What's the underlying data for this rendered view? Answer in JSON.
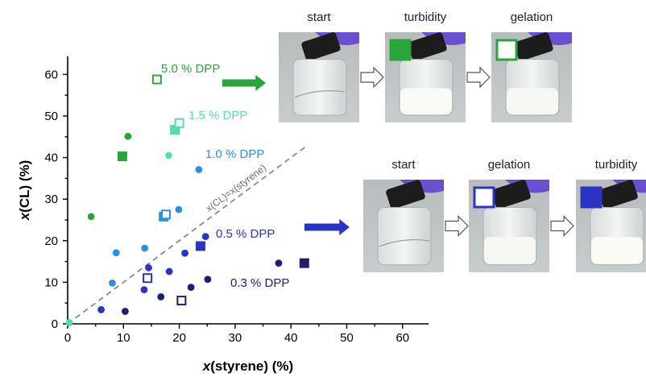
{
  "chart_data": {
    "type": "scatter",
    "xlabel": "x(styrene) (%)",
    "ylabel": "x(CL) (%)",
    "xlim": [
      0,
      65
    ],
    "ylim": [
      0,
      65
    ],
    "x_ticks": [
      0,
      10,
      20,
      30,
      40,
      50,
      60
    ],
    "y_ticks": [
      0,
      10,
      20,
      30,
      40,
      50,
      60
    ],
    "grid": false,
    "diagonal_label": "x(CL)=x(styrene)",
    "series": [
      {
        "name": "5.0 % DPP",
        "color": "#2aa53a",
        "circles": [
          [
            4.2,
            25.8
          ],
          [
            10.8,
            45.1
          ]
        ],
        "filled_squares": [
          [
            9.8,
            40.3
          ]
        ],
        "open_squares": [
          [
            16.0,
            58.8
          ]
        ]
      },
      {
        "name": "1.5 % DPP",
        "color": "#4fe0b0",
        "circles": [
          [
            0.3,
            0.3
          ],
          [
            18.1,
            40.5
          ]
        ],
        "filled_squares": [
          [
            19.2,
            46.7
          ]
        ],
        "open_squares": [
          [
            20.0,
            48.3
          ]
        ]
      },
      {
        "name": "1.0 % DPP",
        "color": "#2b8fe0",
        "circles": [
          [
            8.7,
            17.1
          ],
          [
            8.0,
            9.8
          ],
          [
            13.8,
            18.2
          ],
          [
            19.9,
            27.5
          ],
          [
            23.5,
            37.1
          ]
        ],
        "filled_squares": [
          [
            17.2,
            25.8
          ]
        ],
        "open_squares": [
          [
            17.6,
            26.3
          ]
        ]
      },
      {
        "name": "0.5 % DPP",
        "color": "#2a34c4",
        "circles": [
          [
            6.0,
            3.4
          ],
          [
            13.7,
            8.2
          ],
          [
            14.5,
            13.5
          ],
          [
            18.2,
            12.6
          ],
          [
            21.0,
            17.0
          ],
          [
            24.7,
            21.0
          ]
        ],
        "filled_squares": [
          [
            23.8,
            18.7
          ]
        ],
        "open_squares": [
          [
            14.3,
            11.0
          ]
        ]
      },
      {
        "name": "0.3 % DPP",
        "color": "#1b1f6e",
        "circles": [
          [
            10.3,
            3.0
          ],
          [
            16.7,
            6.5
          ],
          [
            22.1,
            8.8
          ],
          [
            25.1,
            10.7
          ],
          [
            37.8,
            14.6
          ]
        ],
        "filled_squares": [
          [
            42.4,
            14.6
          ]
        ],
        "open_squares": [
          [
            20.4,
            5.6
          ]
        ]
      }
    ]
  },
  "photo_panels": [
    {
      "series": "5.0 % DPP",
      "labels": [
        "start",
        "turbidity",
        "gelation"
      ],
      "indicator_color": "#2aa53a"
    },
    {
      "series": "0.5 % DPP",
      "labels": [
        "start",
        "gelation",
        "turbidity"
      ],
      "indicator_color": "#2a34c4"
    }
  ]
}
